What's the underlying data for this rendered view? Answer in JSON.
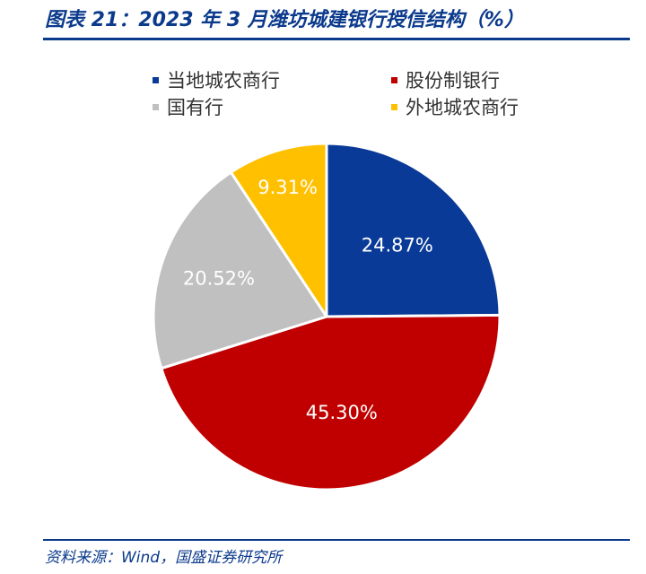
{
  "header": {
    "title": "图表 21：2023 年 3 月潍坊城建银行授信结构（%）"
  },
  "footer": {
    "source": "资料来源：Wind，国盛证券研究所"
  },
  "chart_data": {
    "type": "pie",
    "title": "图表 21：2023 年 3 月潍坊城建银行授信结构（%）",
    "legend_position": "top",
    "categories": [
      "当地城农商行",
      "股份制银行",
      "国有行",
      "外地城农商行"
    ],
    "values": [
      24.87,
      45.3,
      20.52,
      9.31
    ],
    "labels": [
      "24.87%",
      "45.30%",
      "20.52%",
      "9.31%"
    ],
    "colors": [
      "#0a3a97",
      "#c00000",
      "#c0c0c0",
      "#ffc000"
    ],
    "label_colors": [
      "#ffffff",
      "#ffffff",
      "#ffffff",
      "#ffffff"
    ]
  }
}
